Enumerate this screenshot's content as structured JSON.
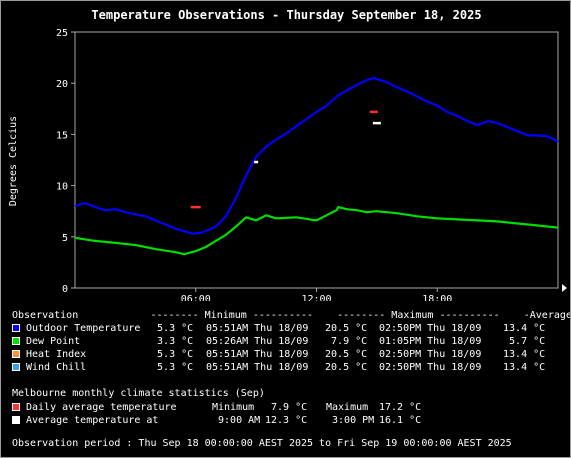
{
  "title": "Temperature Observations - Thursday September 18, 2025",
  "chart_data": {
    "type": "line",
    "ylabel": "Degrees Celcius",
    "xlabel": "",
    "ylim": [
      0,
      25
    ],
    "yticks": [
      0,
      5,
      10,
      15,
      20,
      25
    ],
    "xlim": [
      0,
      24
    ],
    "xticks": [
      {
        "v": 6,
        "label": "06:00"
      },
      {
        "v": 12,
        "label": "12:00"
      },
      {
        "v": 18,
        "label": "18:00"
      }
    ],
    "grid": true,
    "series": [
      {
        "name": "Outdoor Temperature",
        "color": "#0000ff",
        "x": [
          0,
          0.5,
          1,
          1.5,
          2,
          2.5,
          3,
          3.5,
          4,
          4.5,
          5,
          5.5,
          5.85,
          6.3,
          7,
          7.5,
          8,
          8.5,
          9,
          9.5,
          10,
          10.5,
          11,
          11.5,
          12,
          12.5,
          13,
          13.5,
          14,
          14.5,
          14.85,
          15,
          15.5,
          16,
          16.5,
          17,
          17.5,
          18,
          18.5,
          19,
          19.5,
          20,
          20.5,
          21,
          21.5,
          22,
          22.5,
          23,
          23.5,
          24
        ],
        "values": [
          8.0,
          8.3,
          7.9,
          7.6,
          7.7,
          7.4,
          7.2,
          7.0,
          6.6,
          6.2,
          5.8,
          5.5,
          5.3,
          5.4,
          6.0,
          7.0,
          8.8,
          11.0,
          12.8,
          13.8,
          14.5,
          15.1,
          15.8,
          16.5,
          17.2,
          17.8,
          18.7,
          19.3,
          19.8,
          20.3,
          20.5,
          20.4,
          20.1,
          19.6,
          19.2,
          18.7,
          18.2,
          17.8,
          17.2,
          16.8,
          16.3,
          15.9,
          16.3,
          16.1,
          15.7,
          15.3,
          14.9,
          14.9,
          14.8,
          14.3
        ]
      },
      {
        "name": "Dew Point",
        "color": "#00dd00",
        "x": [
          0,
          1,
          2,
          3,
          4,
          5,
          5.43,
          6,
          6.5,
          7,
          7.5,
          8,
          8.5,
          9,
          9.5,
          10,
          11,
          12,
          12.5,
          13,
          13.08,
          13.5,
          14,
          14.5,
          15,
          16,
          17,
          18,
          19,
          20,
          21,
          22,
          23,
          24
        ],
        "values": [
          4.9,
          4.6,
          4.4,
          4.2,
          3.8,
          3.5,
          3.3,
          3.6,
          4.0,
          4.6,
          5.2,
          6.0,
          6.9,
          6.6,
          7.1,
          6.8,
          6.9,
          6.6,
          7.1,
          7.6,
          7.9,
          7.7,
          7.6,
          7.4,
          7.5,
          7.3,
          7.0,
          6.8,
          6.7,
          6.6,
          6.5,
          6.3,
          6.1,
          5.9
        ]
      }
    ],
    "markers": [
      {
        "name": "Daily average temperature",
        "kind": "Minimum",
        "time": "9:00 AM",
        "x": 6,
        "y": 7.9,
        "color": "#ff3030",
        "width": 10
      },
      {
        "name": "Daily average temperature",
        "kind": "Maximum",
        "time": "3:00 PM",
        "x": 14.85,
        "y": 17.2,
        "color": "#ff3030",
        "width": 8
      },
      {
        "name": "Average temperature at",
        "kind": "9:00 AM",
        "x": 9,
        "y": 12.3,
        "color": "#ffffff",
        "width": 4
      },
      {
        "name": "Average temperature at",
        "kind": "3:00 PM",
        "x": 15,
        "y": 16.1,
        "color": "#ffffff",
        "width": 8
      }
    ]
  },
  "stats": {
    "heading": "Observation            -------- Minimum ----------    -------- Maximum ----------    -Average-",
    "rows": [
      {
        "label": "Outdoor Temperature",
        "color": "#0000ff",
        "min": "  5.3 °C",
        "min_time": "05:51AM Thu 18/09",
        "max": " 20.5 °C",
        "max_time": "02:50PM Thu 18/09",
        "avg": " 13.4 °C"
      },
      {
        "label": "Dew Point",
        "color": "#00dd00",
        "min": "  3.3 °C",
        "min_time": "05:26AM Thu 18/09",
        "max": "  7.9 °C",
        "max_time": "01:05PM Thu 18/09",
        "avg": "  5.7 °C"
      },
      {
        "label": "Heat Index",
        "color": "#ff8c40",
        "min": "  5.3 °C",
        "min_time": "05:51AM Thu 18/09",
        "max": " 20.5 °C",
        "max_time": "02:50PM Thu 18/09",
        "avg": " 13.4 °C"
      },
      {
        "label": "Wind Chill",
        "color": "#3aa0e8",
        "min": "  5.3 °C",
        "min_time": "05:51AM Thu 18/09",
        "max": " 20.5 °C",
        "max_time": "02:50PM Thu 18/09",
        "avg": " 13.4 °C"
      }
    ]
  },
  "climate": {
    "heading": "Melbourne monthly climate statistics (Sep)",
    "daily_label": "Daily average temperature",
    "daily_min_label": "Minimum",
    "daily_min": " 7.9 °C",
    "daily_max_label": "Maximum",
    "daily_max": "17.2 °C",
    "daily_color": "#ff3030",
    "at_label": "Average temperature at",
    "at_time1": " 9:00 AM",
    "at_val1": "12.3 °C",
    "at_time2": " 3:00 PM",
    "at_val2": "16.1 °C",
    "at_color": "#ffffff"
  },
  "period": "Observation period : Thu Sep 18 00:00:00 AEST 2025 to Fri Sep 19 00:00:00 AEST 2025"
}
